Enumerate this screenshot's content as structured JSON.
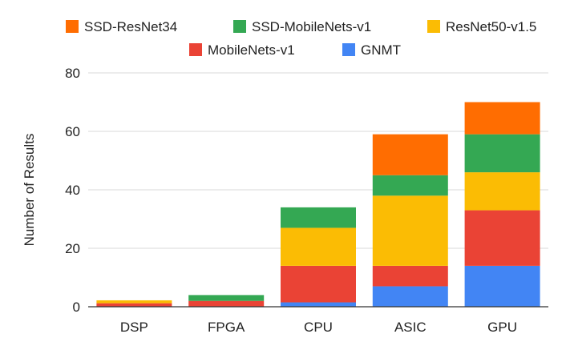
{
  "chart_data": {
    "type": "bar",
    "stacked": true,
    "categories": [
      "DSP",
      "FPGA",
      "CPU",
      "ASIC",
      "GPU"
    ],
    "series": [
      {
        "name": "GNMT",
        "color": "#4285F4",
        "values": [
          0,
          0,
          1.5,
          7,
          14
        ]
      },
      {
        "name": "MobileNets-v1",
        "color": "#EA4335",
        "values": [
          1.2,
          2,
          12.5,
          7,
          19
        ]
      },
      {
        "name": "ResNet50-v1.5",
        "color": "#FBBC04",
        "values": [
          1,
          0,
          13,
          24,
          13
        ]
      },
      {
        "name": "SSD-MobileNets-v1",
        "color": "#34A853",
        "values": [
          0,
          2,
          7,
          7,
          13
        ]
      },
      {
        "name": "SSD-ResNet34",
        "color": "#FF6D01",
        "values": [
          0,
          0,
          0,
          14,
          11
        ]
      }
    ],
    "legend_order": [
      "SSD-ResNet34",
      "SSD-MobileNets-v1",
      "ResNet50-v1.5",
      "MobileNets-v1",
      "GNMT"
    ],
    "ylabel": "Number of Results",
    "xlabel": "",
    "ylim": [
      0,
      80
    ],
    "yticks": [
      0,
      20,
      40,
      60,
      80
    ],
    "grid": true,
    "legend_position": "top"
  }
}
